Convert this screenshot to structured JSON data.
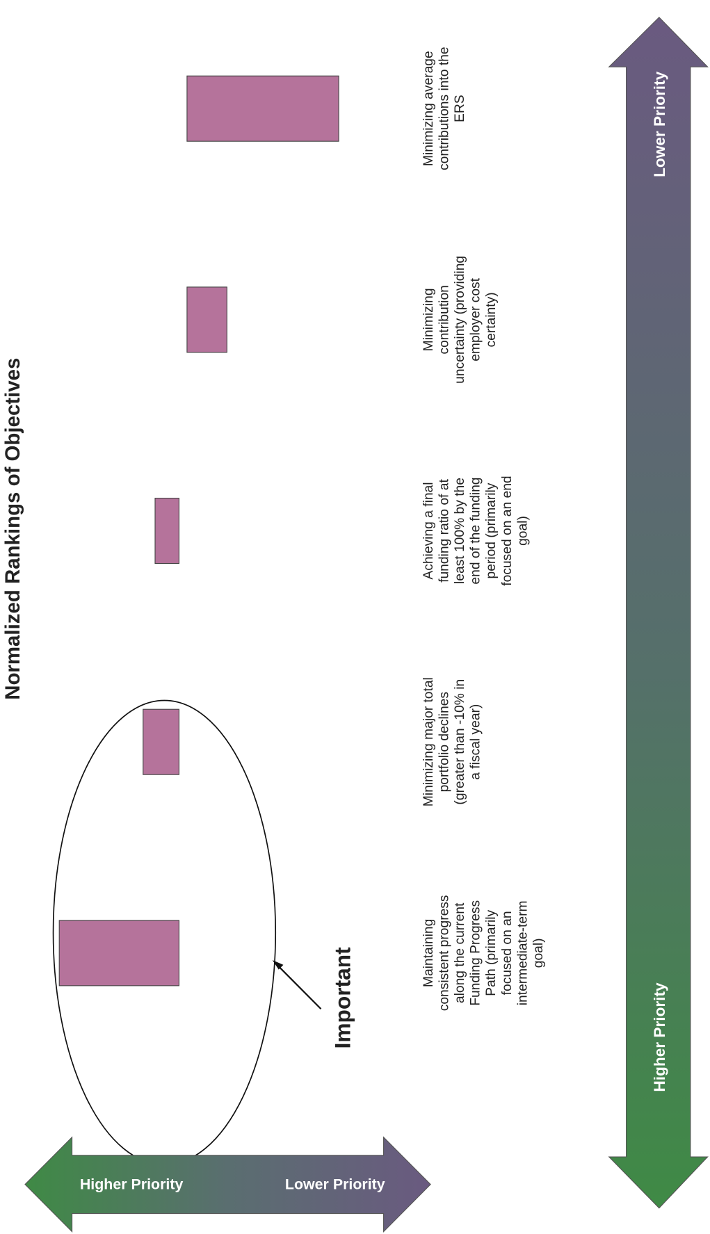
{
  "chart_data": {
    "type": "range_bar",
    "title": "Normalized Rankings of Objectives",
    "categories": [
      "Maintaining consistent progress along the current Funding Progress Path (primarily focused on an intermediate-term goal)",
      "Minimizing major total portfolio declines (greater than -10% in a fiscal year)",
      "Achieving a final funding ratio of at least 100% by the end of the funding period (primarily focused on an end goal)",
      "Minimizing contribution uncertainty (providing employer cost certainty)",
      "Minimizing average contributions into the ERS"
    ],
    "values": [
      [
        7,
        37
      ],
      [
        28,
        37
      ],
      [
        31,
        37
      ],
      [
        39,
        49
      ],
      [
        39,
        77
      ]
    ],
    "xlim": [
      0,
      100
    ],
    "color": "#b5739b",
    "priority_labels": [
      "Higher Priority",
      "Lower Priority"
    ],
    "annotation": "Important"
  }
}
